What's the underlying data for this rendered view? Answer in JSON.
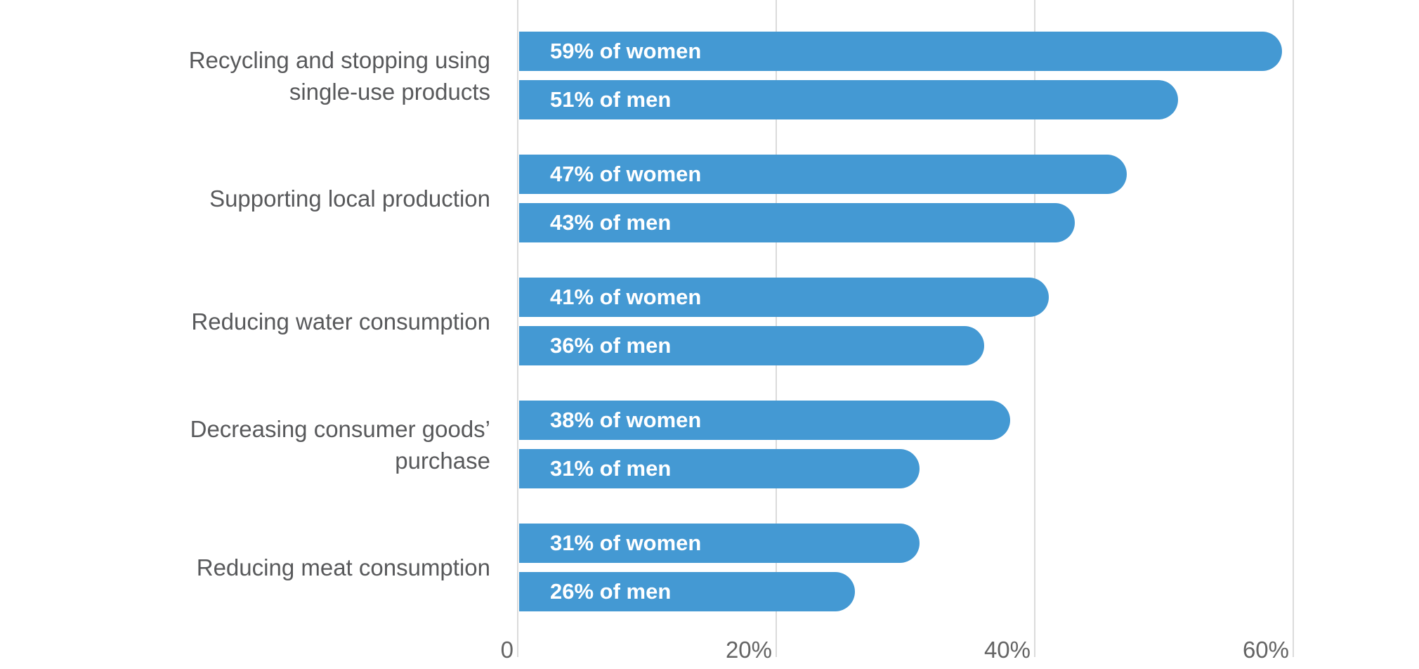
{
  "chart_data": {
    "type": "bar",
    "orientation": "horizontal",
    "title": "",
    "categories": [
      "Recycling and stopping using single-use products",
      "Supporting local production",
      "Reducing water consumption",
      "Decreasing consumer goods’ purchase",
      "Reducing meat consumption"
    ],
    "category_label_lines": [
      [
        "Recycling and stopping using",
        "single-use products"
      ],
      [
        "Supporting local production"
      ],
      [
        "Reducing water consumption"
      ],
      [
        "Decreasing consumer goods’",
        "purchase"
      ],
      [
        "Reducing meat consumption"
      ]
    ],
    "series": [
      {
        "name": "women",
        "values": [
          59,
          47,
          41,
          38,
          31
        ]
      },
      {
        "name": "men",
        "values": [
          51,
          43,
          36,
          31,
          26
        ]
      }
    ],
    "bar_labels": [
      [
        "59% of women",
        "51% of men"
      ],
      [
        "47% of women",
        "43% of men"
      ],
      [
        "41% of women",
        "36% of men"
      ],
      [
        "38% of women",
        "31% of men"
      ],
      [
        "31% of women",
        "26% of men"
      ]
    ],
    "x_axis": {
      "ticks": [
        {
          "value": 0,
          "label": "0"
        },
        {
          "value": 20,
          "label": "20%"
        },
        {
          "value": 40,
          "label": "40%"
        },
        {
          "value": 60,
          "label": "60%"
        }
      ],
      "range": [
        0,
        70
      ],
      "grid": true
    },
    "legend": "none",
    "colors": {
      "bar": "#4499D3",
      "bar_text": "#FFFFFF",
      "category_text": "#58595B",
      "tick_text": "#646464",
      "gridline": "#DBDBDB",
      "background": "#FFFFFF"
    }
  }
}
